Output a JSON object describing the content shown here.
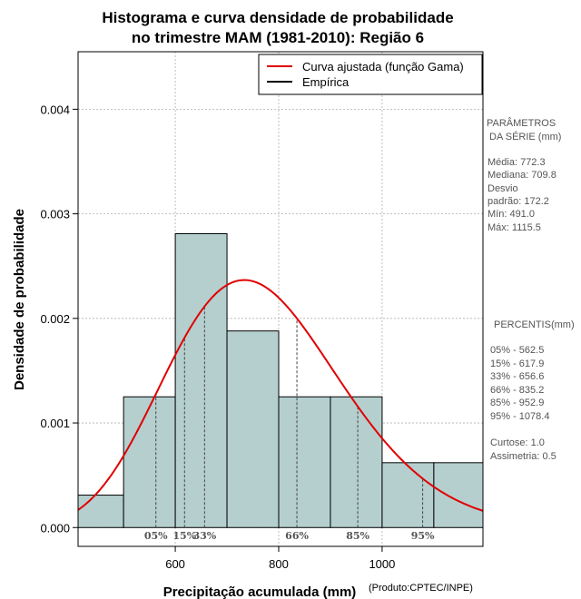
{
  "chart_data": {
    "type": "bar",
    "title_line1": "Histograma e curva densidade de probabilidade",
    "title_line2": "no trimestre MAM (1981-2010): Região 6",
    "xlabel": "Precipitação acumulada (mm)",
    "ylabel": "Densidade de probabilidade",
    "credit": "(Produto:CPTEC/INPE)",
    "xlim": [
      412,
      1195
    ],
    "ylim": [
      -0.00018,
      0.00455
    ],
    "x_ticks": [
      600,
      800,
      1000
    ],
    "x_tick_labels": [
      "600",
      "800",
      "1000"
    ],
    "y_ticks": [
      0.0,
      0.001,
      0.002,
      0.003,
      0.004
    ],
    "y_tick_labels": [
      "0.000",
      "0.001",
      "0.002",
      "0.003",
      "0.004"
    ],
    "bins": [
      {
        "start": 400,
        "end": 500,
        "density": 0.00031
      },
      {
        "start": 500,
        "end": 600,
        "density": 0.00125
      },
      {
        "start": 600,
        "end": 700,
        "density": 0.00281
      },
      {
        "start": 700,
        "end": 800,
        "density": 0.00188
      },
      {
        "start": 800,
        "end": 900,
        "density": 0.00125
      },
      {
        "start": 900,
        "end": 1000,
        "density": 0.00125
      },
      {
        "start": 1000,
        "end": 1100,
        "density": 0.00062
      },
      {
        "start": 1100,
        "end": 1200,
        "density": 0.00062
      }
    ],
    "gamma_fit": {
      "shape": 20.1,
      "scale": 38.4
    },
    "percentile_markers": [
      {
        "label": "05%",
        "value": 562.5
      },
      {
        "label": "15%",
        "value": 617.9
      },
      {
        "label": "33%",
        "value": 656.6
      },
      {
        "label": "66%",
        "value": 835.2
      },
      {
        "label": "85%",
        "value": 952.9
      },
      {
        "label": "95%",
        "value": 1078.4
      }
    ],
    "legend": [
      {
        "label": "Curva ajustada (função Gama)",
        "color": "#e00000"
      },
      {
        "label": "Empírica",
        "color": "#000000"
      }
    ],
    "bar_color": "#b5cfcf",
    "curve_color": "#e00000"
  },
  "stats": {
    "header_line1": "PARÂMETROS",
    "header_line2": "DA SÉRIE (mm)",
    "lines": [
      "Média:  772.3",
      "Mediana:  709.8",
      "Desvio",
      "padrão:  172.2",
      "Mín:  491.0",
      "Máx:  1115.5"
    ]
  },
  "percentis": {
    "header": "PERCENTIS(mm)",
    "lines": [
      "05% -   562.5",
      "15% -   617.9",
      "33% -   656.6",
      "66% -   835.2",
      "85% -   952.9",
      "95% -   1078.4"
    ],
    "extra": [
      "Curtose:  1.0",
      "Assimetria:  0.5"
    ]
  }
}
